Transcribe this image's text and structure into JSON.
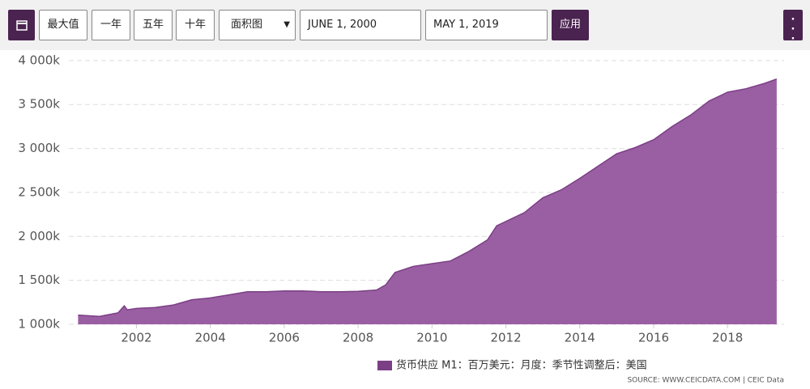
{
  "toolbar": {
    "buttons": [
      "最大值",
      "一年",
      "五年",
      "十年"
    ],
    "chart_select": "面积图",
    "start_date": "JUNE 1, 2000",
    "end_date": "MAY 1, 2019",
    "apply": "应用"
  },
  "chart_data": {
    "type": "area",
    "x": [
      2000.42,
      2001.0,
      2001.5,
      2001.67,
      2001.75,
      2002.0,
      2002.5,
      2003.0,
      2003.5,
      2004.0,
      2004.5,
      2005.0,
      2005.5,
      2006.0,
      2006.5,
      2007.0,
      2007.5,
      2008.0,
      2008.5,
      2008.75,
      2009.0,
      2009.5,
      2010.0,
      2010.5,
      2011.0,
      2011.5,
      2011.75,
      2012.0,
      2012.5,
      2013.0,
      2013.5,
      2014.0,
      2014.5,
      2015.0,
      2015.5,
      2016.0,
      2016.5,
      2017.0,
      2017.5,
      2018.0,
      2018.5,
      2019.0,
      2019.33
    ],
    "series": [
      {
        "name": "货币供应 M1：百万美元：月度：季节性调整后：美国",
        "color": "#9a5fa3",
        "values": [
          1105,
          1090,
          1130,
          1210,
          1165,
          1180,
          1190,
          1220,
          1280,
          1300,
          1335,
          1370,
          1370,
          1380,
          1380,
          1370,
          1370,
          1375,
          1390,
          1450,
          1590,
          1660,
          1690,
          1720,
          1830,
          1960,
          2120,
          2170,
          2270,
          2440,
          2530,
          2660,
          2800,
          2940,
          3010,
          3100,
          3250,
          3380,
          3540,
          3640,
          3680,
          3740,
          3790
        ]
      }
    ],
    "xlim": [
      2000.17,
      2019.53
    ],
    "xticks": [
      2002,
      2004,
      2006,
      2008,
      2010,
      2012,
      2014,
      2016,
      2018
    ],
    "ylim": [
      1000,
      4100
    ],
    "yticks": [
      {
        "value": 1000,
        "label": "1 000k"
      },
      {
        "value": 1500,
        "label": "1 500k"
      },
      {
        "value": 2000,
        "label": "2 000k"
      },
      {
        "value": 2500,
        "label": "2 500k"
      },
      {
        "value": 3000,
        "label": "3 000k"
      },
      {
        "value": 3500,
        "label": "3 500k"
      },
      {
        "value": 4000,
        "label": "4 000k"
      }
    ],
    "grid": true,
    "source": "SOURCE: WWW.CEICDATA.COM | CEIC Data"
  }
}
